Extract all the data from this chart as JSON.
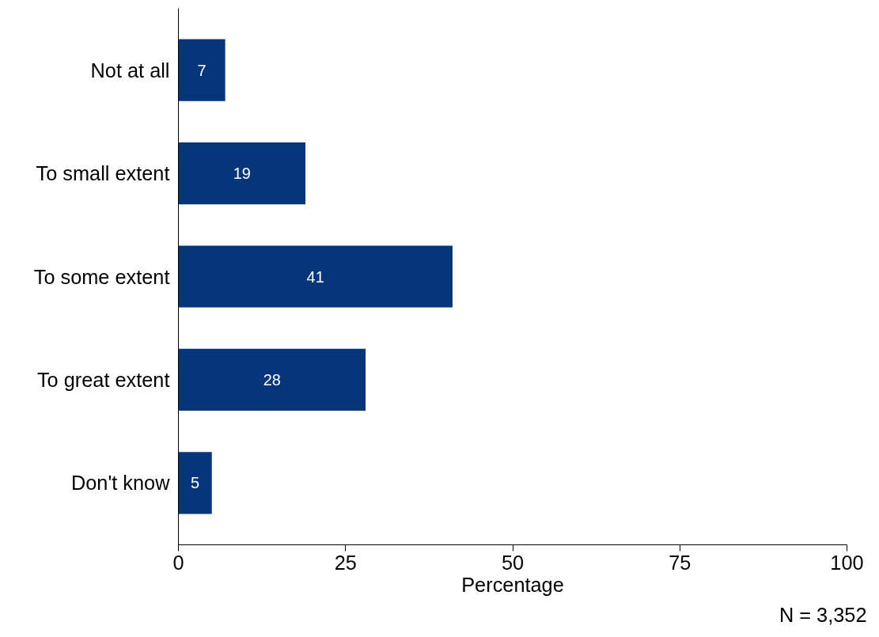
{
  "chart_data": {
    "type": "bar",
    "orientation": "horizontal",
    "xlabel": "Percentage",
    "categories": [
      "Not at all",
      "To small extent",
      "To some extent",
      "To great extent",
      "Don't know"
    ],
    "values": [
      7,
      19,
      41,
      28,
      5
    ],
    "color": "#06357a",
    "data_labels": true,
    "xlim": [
      0,
      100
    ],
    "xticks": [
      0,
      25,
      50,
      75,
      100
    ],
    "grid": false,
    "annotations": [
      "N = 3,352"
    ]
  }
}
